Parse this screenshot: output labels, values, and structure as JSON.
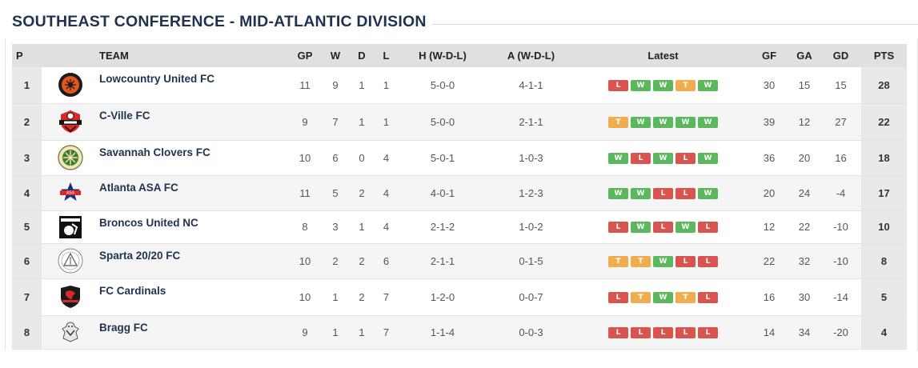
{
  "page_title": "SOUTHEAST CONFERENCE - MID-ATLANTIC DIVISION",
  "headers": {
    "pos": "P",
    "team": "TEAM",
    "gp": "GP",
    "w": "W",
    "d": "D",
    "l": "L",
    "home": "H (W-D-L)",
    "away": "A (W-D-L)",
    "latest": "Latest",
    "gf": "GF",
    "ga": "GA",
    "gd": "GD",
    "pts": "PTS"
  },
  "colors": {
    "win": "#5cb85c",
    "loss": "#d9534f",
    "tie": "#f0ad4e",
    "title": "#1f3350"
  },
  "rows": [
    {
      "pos": "1",
      "team": "Lowcountry United FC",
      "logo": "lowcountry-logo",
      "gp": "11",
      "w": "9",
      "d": "1",
      "l": "1",
      "home": "5-0-0",
      "away": "4-1-1",
      "latest": [
        "L",
        "W",
        "W",
        "T",
        "W"
      ],
      "gf": "30",
      "ga": "15",
      "gd": "15",
      "pts": "28"
    },
    {
      "pos": "2",
      "team": "C-Ville FC",
      "logo": "cville-logo",
      "gp": "9",
      "w": "7",
      "d": "1",
      "l": "1",
      "home": "5-0-0",
      "away": "2-1-1",
      "latest": [
        "T",
        "W",
        "W",
        "W",
        "W"
      ],
      "gf": "39",
      "ga": "12",
      "gd": "27",
      "pts": "22"
    },
    {
      "pos": "3",
      "team": "Savannah Clovers FC",
      "logo": "savannah-logo",
      "gp": "10",
      "w": "6",
      "d": "0",
      "l": "4",
      "home": "5-0-1",
      "away": "1-0-3",
      "latest": [
        "W",
        "L",
        "W",
        "L",
        "W"
      ],
      "gf": "36",
      "ga": "20",
      "gd": "16",
      "pts": "18"
    },
    {
      "pos": "4",
      "team": "Atlanta ASA FC",
      "logo": "atlanta-logo",
      "gp": "11",
      "w": "5",
      "d": "2",
      "l": "4",
      "home": "4-0-1",
      "away": "1-2-3",
      "latest": [
        "W",
        "W",
        "L",
        "L",
        "W"
      ],
      "gf": "20",
      "ga": "24",
      "gd": "-4",
      "pts": "17"
    },
    {
      "pos": "5",
      "team": "Broncos United NC",
      "logo": "broncos-logo",
      "gp": "8",
      "w": "3",
      "d": "1",
      "l": "4",
      "home": "2-1-2",
      "away": "1-0-2",
      "latest": [
        "L",
        "W",
        "L",
        "W",
        "L"
      ],
      "gf": "12",
      "ga": "22",
      "gd": "-10",
      "pts": "10"
    },
    {
      "pos": "6",
      "team": "Sparta 20/20 FC",
      "logo": "sparta-logo",
      "gp": "10",
      "w": "2",
      "d": "2",
      "l": "6",
      "home": "2-1-1",
      "away": "0-1-5",
      "latest": [
        "T",
        "T",
        "W",
        "L",
        "L"
      ],
      "gf": "22",
      "ga": "32",
      "gd": "-10",
      "pts": "8"
    },
    {
      "pos": "7",
      "team": "FC Cardinals",
      "logo": "cardinals-logo",
      "gp": "10",
      "w": "1",
      "d": "2",
      "l": "7",
      "home": "1-2-0",
      "away": "0-0-7",
      "latest": [
        "L",
        "T",
        "W",
        "T",
        "L"
      ],
      "gf": "16",
      "ga": "30",
      "gd": "-14",
      "pts": "5"
    },
    {
      "pos": "8",
      "team": "Bragg FC",
      "logo": "bragg-logo",
      "gp": "9",
      "w": "1",
      "d": "1",
      "l": "7",
      "home": "1-1-4",
      "away": "0-0-3",
      "latest": [
        "L",
        "L",
        "L",
        "L",
        "L"
      ],
      "gf": "14",
      "ga": "34",
      "gd": "-20",
      "pts": "4"
    }
  ]
}
